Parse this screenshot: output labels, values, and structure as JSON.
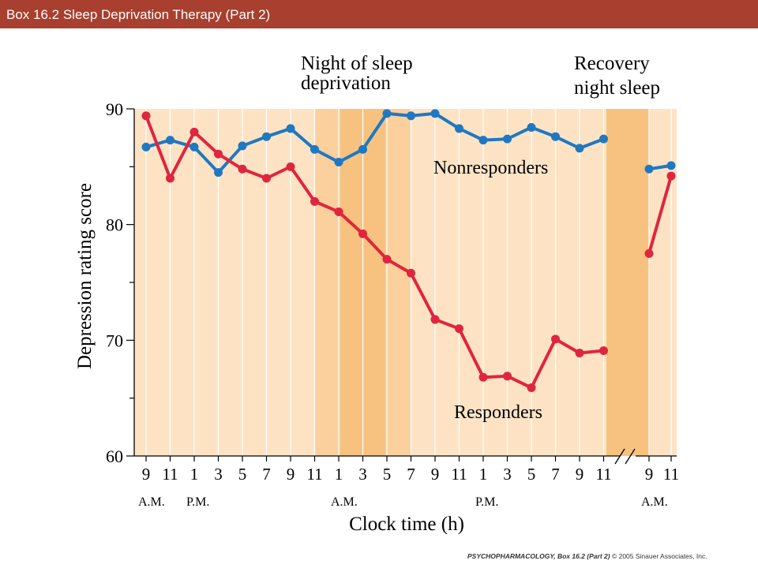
{
  "header": {
    "title": "Box 16.2  Sleep Deprivation Therapy (Part 2)"
  },
  "credit": {
    "book": "PSYCHOPHARMACOLOGY, Box 16.2 (Part 2)",
    "rights": "© 2005 Sinauer Associates, Inc."
  },
  "colors": {
    "title_bar": "#a93f2e",
    "plot_background": "#fde3c4",
    "shade_dark": "#f7c27f",
    "shade_mid": "#fbd09d",
    "responders": "#e0253e",
    "nonresponders": "#1f78c1"
  },
  "chart_data": {
    "type": "line",
    "title": "",
    "xlabel": "Clock time (h)",
    "ylabel": "Depression rating score",
    "ylim": [
      60,
      90
    ],
    "yticks": [
      60,
      70,
      80,
      90
    ],
    "grid": true,
    "tick_labels": [
      "9",
      "11",
      "1",
      "3",
      "5",
      "7",
      "9",
      "11",
      "1",
      "3",
      "5",
      "7",
      "9",
      "11",
      "1",
      "3",
      "5",
      "7",
      "9",
      "11",
      "9",
      "11"
    ],
    "period_labels": [
      {
        "text": "A.M.",
        "tick_index": 0
      },
      {
        "text": "P.M.",
        "tick_index": 2
      },
      {
        "text": "A.M.",
        "tick_index": 8
      },
      {
        "text": "P.M.",
        "tick_index": 14
      },
      {
        "text": "A.M.",
        "tick_index": 20
      }
    ],
    "annotations": [
      {
        "lines": [
          "Night of sleep",
          "deprivation"
        ]
      },
      {
        "lines": [
          "Recovery",
          "night sleep"
        ]
      }
    ],
    "series": [
      {
        "name": "Nonresponders",
        "color": "#1f78c1",
        "segments": [
          {
            "tick_index": [
              0,
              1,
              2,
              3,
              4,
              5,
              6,
              7,
              8,
              9,
              10,
              11,
              12,
              13,
              14,
              15,
              16,
              17,
              18,
              19
            ],
            "values": [
              86.7,
              87.3,
              86.7,
              84.5,
              86.8,
              87.6,
              88.3,
              86.5,
              85.4,
              86.5,
              89.6,
              89.4,
              89.6,
              88.3,
              87.3,
              87.4,
              88.4,
              87.6,
              86.6,
              87.4
            ]
          },
          {
            "tick_index": [
              20,
              21
            ],
            "values": [
              84.8,
              85.1
            ]
          }
        ]
      },
      {
        "name": "Responders",
        "color": "#e0253e",
        "segments": [
          {
            "tick_index": [
              0,
              1,
              2,
              3,
              4,
              5,
              6,
              7,
              8,
              9,
              10,
              11,
              12,
              13,
              14,
              15,
              16,
              17,
              18,
              19
            ],
            "values": [
              89.4,
              84.0,
              88.0,
              86.1,
              84.8,
              84.0,
              85.0,
              82.0,
              81.1,
              79.2,
              77.0,
              75.8,
              71.8,
              71.0,
              66.8,
              66.9,
              65.9,
              70.1,
              68.9,
              69.1
            ]
          },
          {
            "tick_index": [
              20,
              21
            ],
            "values": [
              77.5,
              84.2
            ]
          }
        ]
      }
    ]
  }
}
